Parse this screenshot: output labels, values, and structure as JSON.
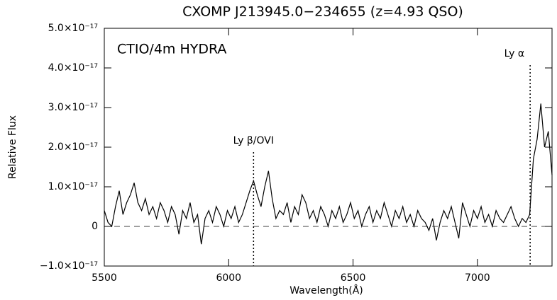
{
  "chart_data": {
    "type": "line",
    "title": "CXOMP J213945.0−234655 (z=4.93 QSO)",
    "x_label": "Wavelength(Å)",
    "y_label": "Relative Flux",
    "annotation": "CTIO/4m HYDRA",
    "lines": [
      {
        "label": "Ly β/OVI",
        "x": 6100
      },
      {
        "label": "Ly α",
        "x": 7212
      }
    ],
    "color": "#000000",
    "x": [
      5500,
      5515,
      5530,
      5545,
      5560,
      5575,
      5590,
      5605,
      5620,
      5635,
      5650,
      5665,
      5680,
      5695,
      5710,
      5725,
      5740,
      5755,
      5770,
      5785,
      5800,
      5815,
      5830,
      5845,
      5860,
      5875,
      5890,
      5905,
      5920,
      5935,
      5950,
      5965,
      5980,
      5995,
      6010,
      6025,
      6040,
      6055,
      6070,
      6085,
      6100,
      6115,
      6130,
      6145,
      6160,
      6175,
      6190,
      6205,
      6220,
      6235,
      6250,
      6265,
      6280,
      6295,
      6310,
      6325,
      6340,
      6355,
      6370,
      6385,
      6400,
      6415,
      6430,
      6445,
      6460,
      6475,
      6490,
      6505,
      6520,
      6535,
      6550,
      6565,
      6580,
      6595,
      6610,
      6625,
      6640,
      6655,
      6670,
      6685,
      6700,
      6715,
      6730,
      6745,
      6760,
      6775,
      6790,
      6805,
      6820,
      6835,
      6850,
      6865,
      6880,
      6895,
      6910,
      6925,
      6940,
      6955,
      6970,
      6985,
      7000,
      7015,
      7030,
      7045,
      7060,
      7075,
      7090,
      7105,
      7120,
      7135,
      7150,
      7165,
      7180,
      7195,
      7210,
      7225,
      7240,
      7255,
      7270,
      7285,
      7300
    ],
    "values": [
      4e-18,
      1e-18,
      0.0,
      5e-18,
      9e-18,
      3e-18,
      6e-18,
      8e-18,
      1.1e-17,
      6e-18,
      4e-18,
      7e-18,
      3e-18,
      5e-18,
      2e-18,
      6e-18,
      4e-18,
      1e-18,
      5e-18,
      3e-18,
      -2e-18,
      4e-18,
      2e-18,
      6e-18,
      1e-18,
      3e-18,
      -4.5e-18,
      2e-18,
      4e-18,
      1e-18,
      5e-18,
      3e-18,
      0.0,
      4e-18,
      2e-18,
      5e-18,
      1e-18,
      3e-18,
      6e-18,
      9e-18,
      1.15e-17,
      8e-18,
      5e-18,
      1e-17,
      1.4e-17,
      7e-18,
      2e-18,
      4e-18,
      3e-18,
      6e-18,
      1e-18,
      5e-18,
      3e-18,
      8e-18,
      6e-18,
      2e-18,
      4e-18,
      1e-18,
      5e-18,
      3e-18,
      0.0,
      4e-18,
      2e-18,
      5e-18,
      1e-18,
      3e-18,
      6e-18,
      2e-18,
      4e-18,
      0.0,
      3e-18,
      5e-18,
      1e-18,
      4e-18,
      2e-18,
      6e-18,
      3e-18,
      0.0,
      4e-18,
      2e-18,
      5e-18,
      1e-18,
      3e-18,
      0.0,
      4e-18,
      2e-18,
      1e-18,
      -1e-18,
      2e-18,
      -3.5e-18,
      1e-18,
      4e-18,
      2e-18,
      5e-18,
      1e-18,
      -3e-18,
      6e-18,
      3e-18,
      0.0,
      4e-18,
      2e-18,
      5e-18,
      1e-18,
      3e-18,
      0.0,
      4e-18,
      2e-18,
      1e-18,
      3e-18,
      5e-18,
      2e-18,
      0.0,
      2e-18,
      1e-18,
      3e-18,
      1.7e-17,
      2.2e-17,
      3.1e-17,
      2e-17,
      2.4e-17,
      1.3e-17
    ],
    "xlim": [
      5500,
      7300
    ],
    "xticks": [
      5500,
      6000,
      6500,
      7000
    ],
    "ylim": [
      -1e-17,
      5e-17
    ],
    "yticks": [
      {
        "value": -1e-17,
        "label": "−1.0×10⁻¹⁷"
      },
      0,
      {
        "value": 1e-17,
        "label": "1.0×10⁻¹⁷"
      },
      {
        "value": 2e-17,
        "label": "2.0×10⁻¹⁷"
      },
      {
        "value": 3e-17,
        "label": "3.0×10⁻¹⁷"
      },
      {
        "value": 4e-17,
        "label": "4.0×10⁻¹⁷"
      },
      {
        "value": 5e-17,
        "label": "5.0×10⁻¹⁷"
      }
    ]
  }
}
